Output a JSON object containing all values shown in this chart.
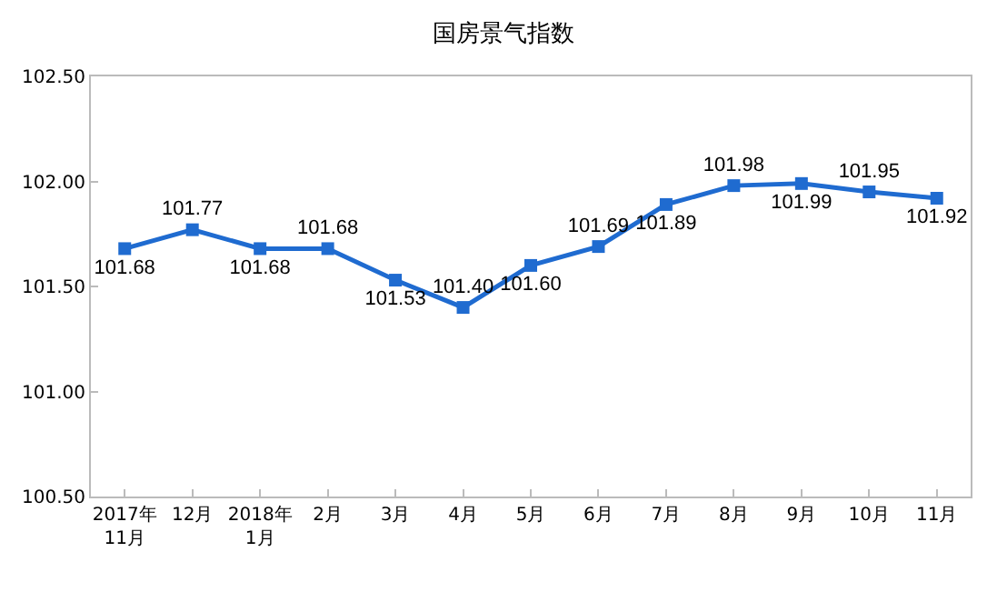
{
  "chart_data": {
    "type": "line",
    "title": "国房景气指数",
    "categories": [
      "2017年\n11月",
      "12月",
      "2018年\n1月",
      "2月",
      "3月",
      "4月",
      "5月",
      "6月",
      "7月",
      "8月",
      "9月",
      "10月",
      "11月"
    ],
    "series": [
      {
        "color": "#1f6bd0",
        "values": [
          101.68,
          101.77,
          101.68,
          101.68,
          101.53,
          101.4,
          101.6,
          101.69,
          101.89,
          101.98,
          101.99,
          101.95,
          101.92
        ],
        "value_labels": [
          "101.68",
          "101.77",
          "101.68",
          "101.68",
          "101.53",
          "101.40",
          "101.60",
          "101.69",
          "101.89",
          "101.98",
          "101.99",
          "101.95",
          "101.92"
        ]
      }
    ],
    "ylim": [
      100.5,
      102.5
    ],
    "yticks": [
      {
        "value": 100.5,
        "label": "100.50"
      },
      {
        "value": 101,
        "label": "101.00"
      },
      {
        "value": 101.5,
        "label": "101.50"
      },
      {
        "value": 102,
        "label": "102.00"
      },
      {
        "value": 102.5,
        "label": "102.50"
      }
    ],
    "grid": false,
    "legend": false,
    "marker": "square",
    "line_style": "solid"
  }
}
